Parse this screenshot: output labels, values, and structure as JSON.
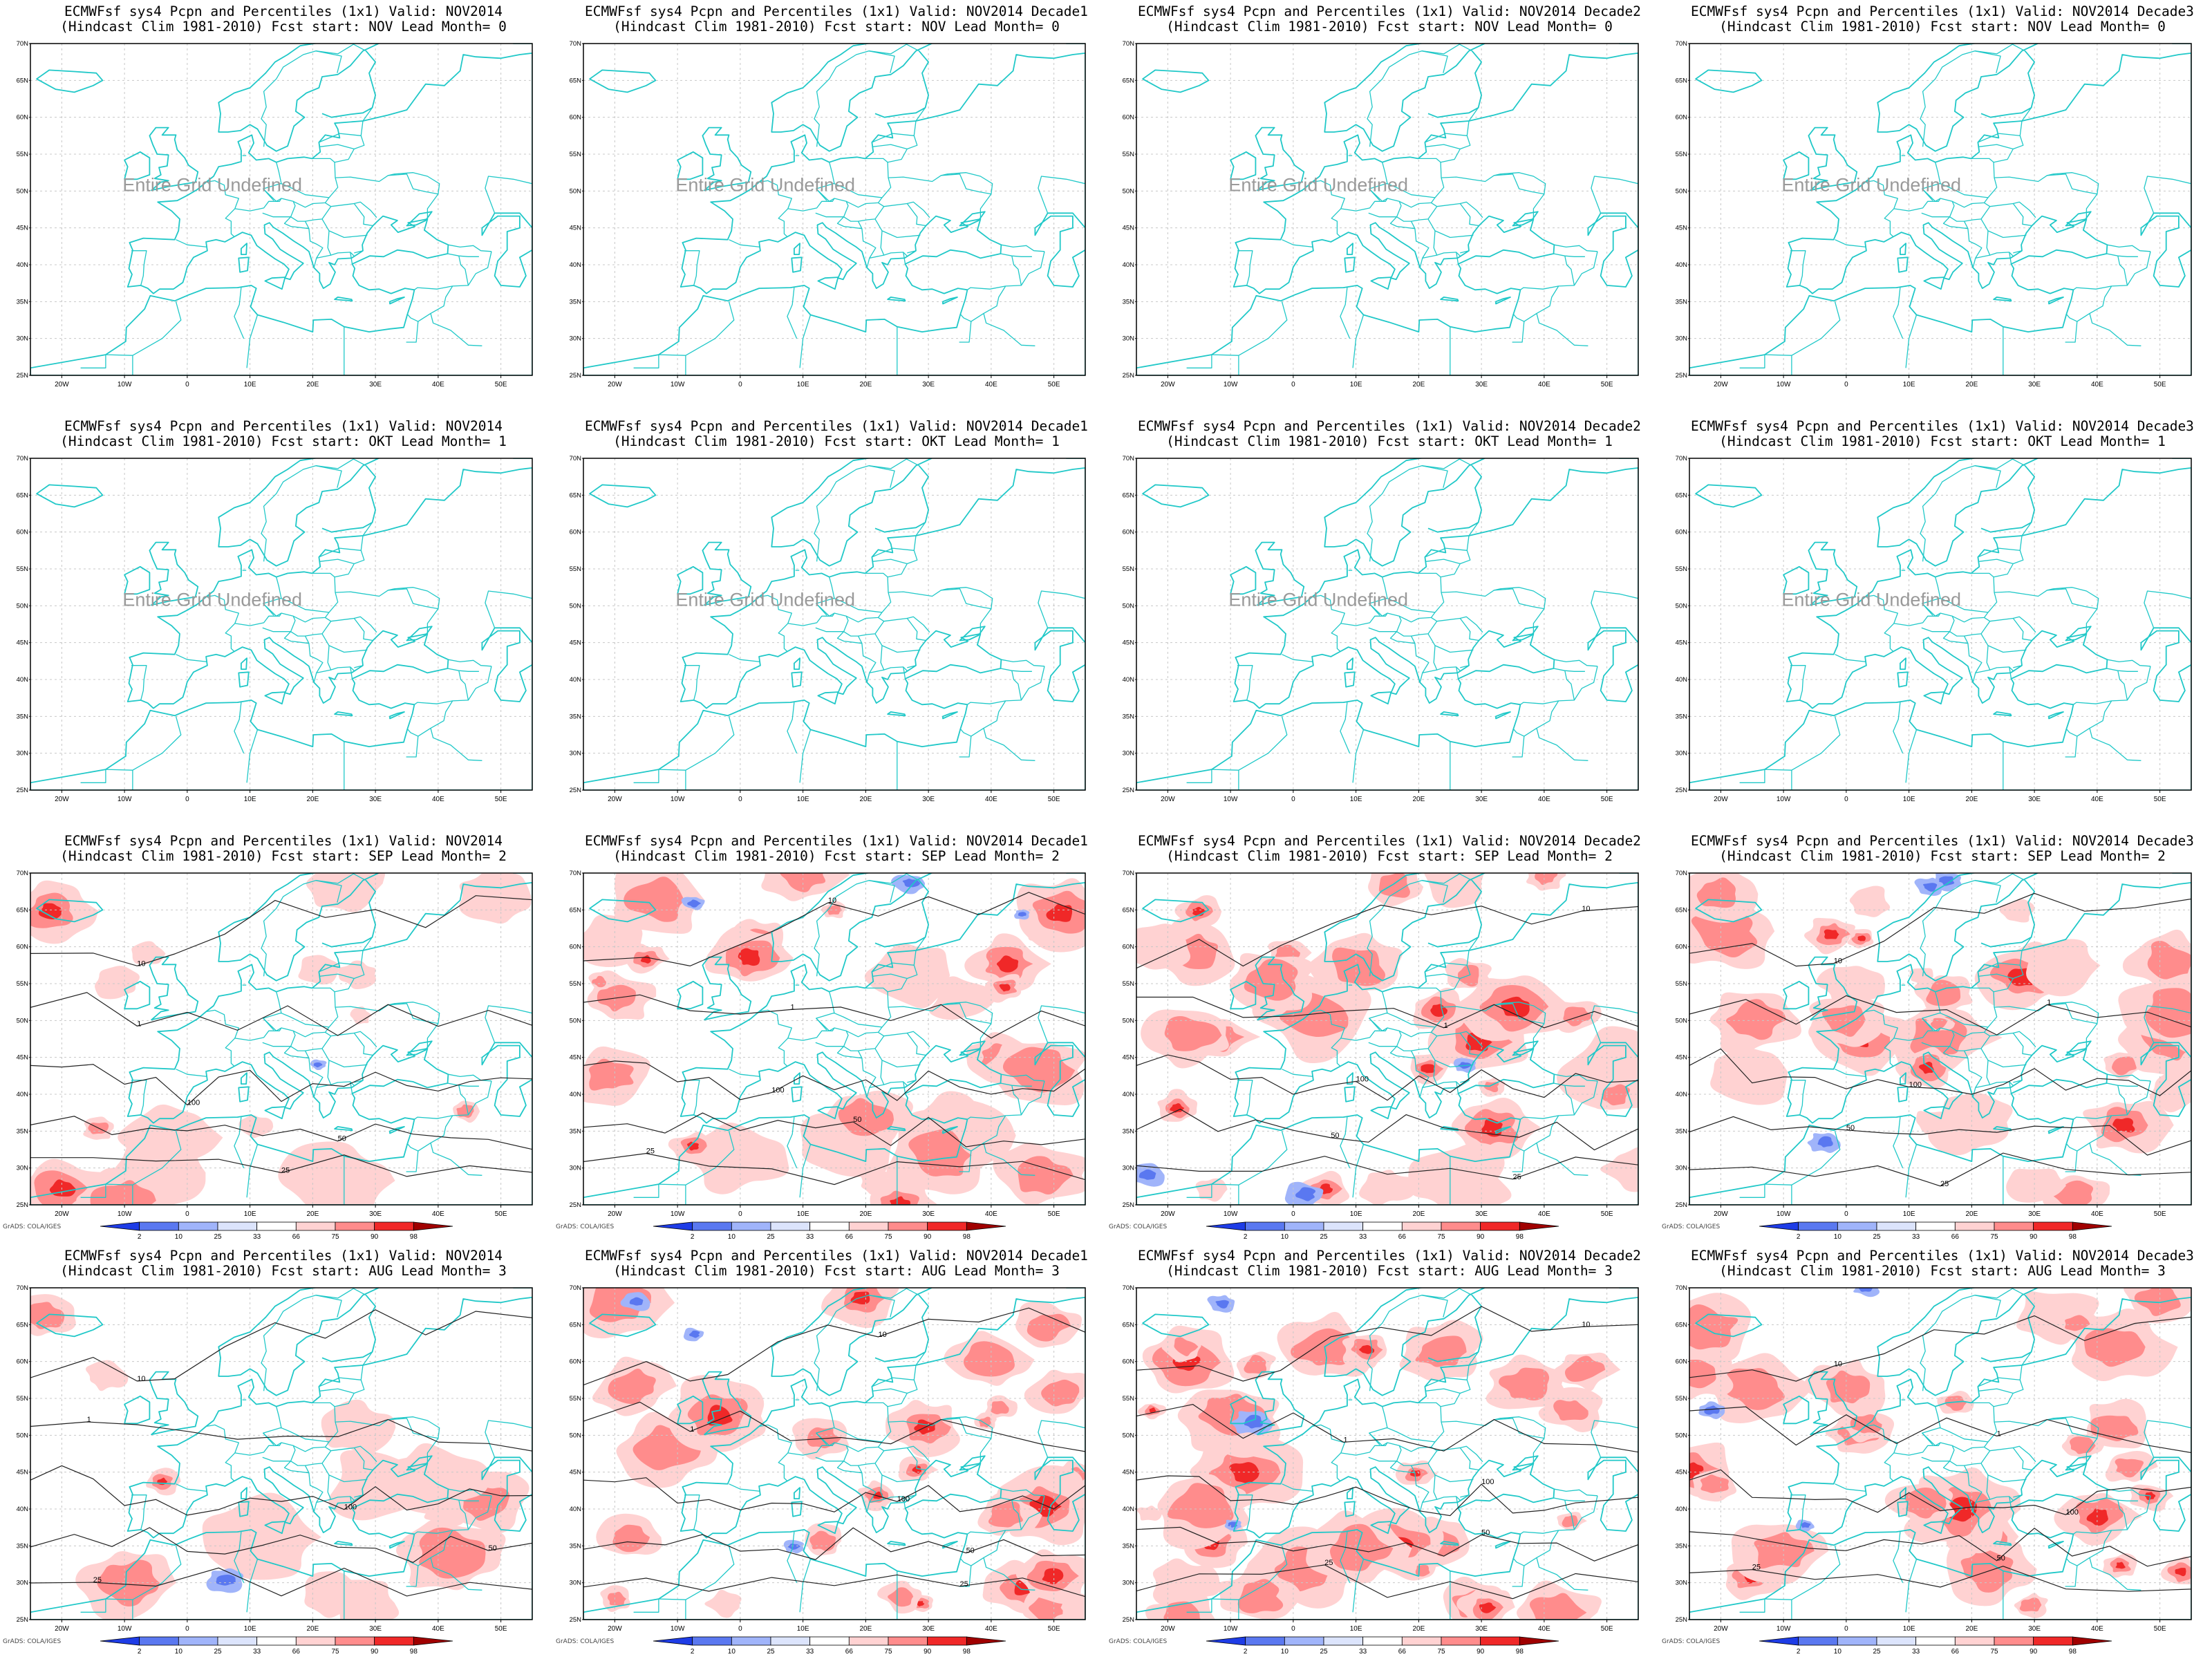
{
  "row_titles": [
    {
      "line2": "(Hindcast Clim 1981-2010) Fcst start: NOV  Lead Month= 0"
    },
    {
      "line2": "(Hindcast Clim 1981-2010) Fcst start: OKT  Lead Month= 1"
    },
    {
      "line2": "(Hindcast Clim 1981-2010) Fcst start: SEP  Lead Month= 2"
    },
    {
      "line2": "(Hindcast Clim 1981-2010) Fcst start: AUG  Lead Month= 3"
    }
  ],
  "column_titles": [
    "ECMWFsf sys4  Pcpn and Percentiles (1x1) Valid: NOV2014",
    "ECMWFsf sys4  Pcpn and Percentiles (1x1) Valid: NOV2014 Decade1",
    "ECMWFsf sys4  Pcpn and Percentiles (1x1) Valid: NOV2014 Decade2",
    "ECMWFsf sys4  Pcpn and Percentiles (1x1) Valid: NOV2014 Decade3"
  ],
  "undefined_text": "Entire Grid Undefined",
  "lat_labels": [
    "70N",
    "65N",
    "60N",
    "55N",
    "50N",
    "45N",
    "40N",
    "35N",
    "30N",
    "25N"
  ],
  "lon_labels": [
    "20W",
    "10W",
    "0",
    "10E",
    "20E",
    "30E",
    "40E",
    "50E"
  ],
  "colorbar_labels": [
    "2",
    "10",
    "25",
    "33",
    "66",
    "75",
    "90",
    "98"
  ],
  "colorbar_colors": [
    "#1e3ce6",
    "#5a78f0",
    "#a0b4fa",
    "#dce4fc",
    "#ffffff",
    "#ffd2d2",
    "#ff8c8c",
    "#f02828",
    "#a00000"
  ],
  "grads_credit": "GrADS: COLA/IGES",
  "contour_labels": [
    "100",
    "50",
    "25",
    "10",
    "1"
  ],
  "coast_color": "#20c8c8",
  "undefined_rows": [
    0,
    1
  ]
}
